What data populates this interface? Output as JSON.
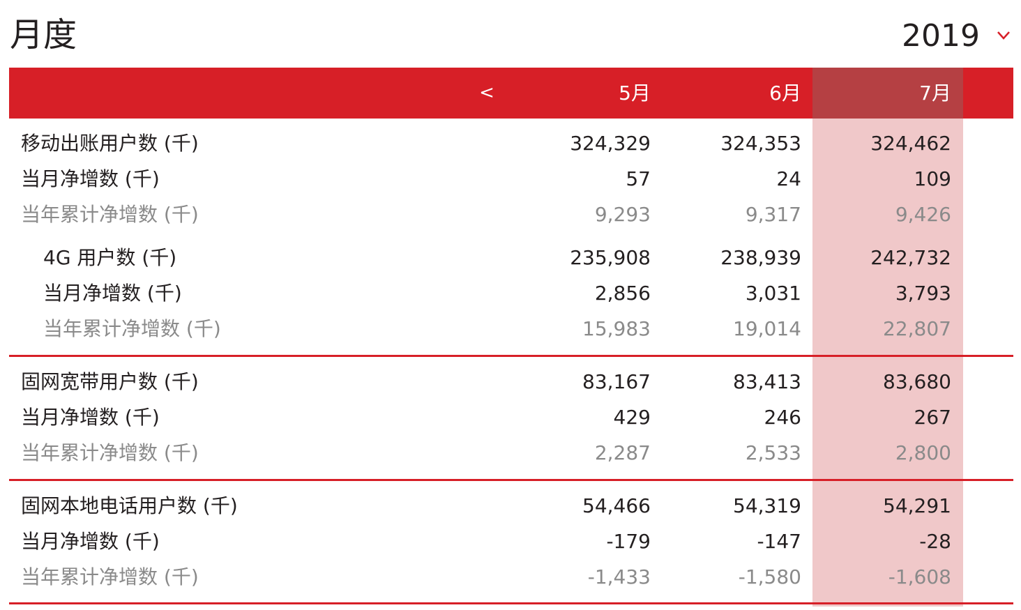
{
  "page": {
    "title": "月度",
    "year": "2019"
  },
  "header": {
    "prev_label": "<",
    "months": [
      "5月",
      "6月",
      "7月"
    ]
  },
  "sections": [
    {
      "rows": [
        {
          "label": "移动出账用户数 (千)",
          "values": [
            "324,329",
            "324,353",
            "324,462"
          ]
        },
        {
          "label": "当月净增数 (千)",
          "values": [
            "57",
            "24",
            "109"
          ]
        },
        {
          "label": "当年累计净增数 (千)",
          "values": [
            "9,293",
            "9,317",
            "9,426"
          ]
        },
        {
          "label": "4G 用户数 (千)",
          "values": [
            "235,908",
            "238,939",
            "242,732"
          ]
        },
        {
          "label": "当月净增数 (千)",
          "values": [
            "2,856",
            "3,031",
            "3,793"
          ]
        },
        {
          "label": "当年累计净增数 (千)",
          "values": [
            "15,983",
            "19,014",
            "22,807"
          ]
        }
      ]
    },
    {
      "rows": [
        {
          "label": "固网宽带用户数 (千)",
          "values": [
            "83,167",
            "83,413",
            "83,680"
          ]
        },
        {
          "label": "当月净增数 (千)",
          "values": [
            "429",
            "246",
            "267"
          ]
        },
        {
          "label": "当年累计净增数 (千)",
          "values": [
            "2,287",
            "2,533",
            "2,800"
          ]
        }
      ]
    },
    {
      "rows": [
        {
          "label": "固网本地电话用户数 (千)",
          "values": [
            "54,466",
            "54,319",
            "54,291"
          ]
        },
        {
          "label": "当月净增数 (千)",
          "values": [
            "-179",
            "-147",
            "-28"
          ]
        },
        {
          "label": "当年累计净增数 (千)",
          "values": [
            "-1,433",
            "-1,580",
            "-1,608"
          ]
        }
      ]
    }
  ],
  "colors": {
    "accent": "#d71f27",
    "selected_header": "#b54043",
    "selected_column": "#f0c8c9",
    "muted_text": "#8a8a8a"
  }
}
